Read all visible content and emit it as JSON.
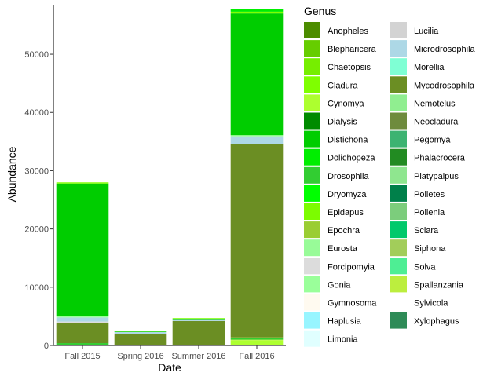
{
  "chart_data": {
    "type": "bar",
    "stacked": true,
    "xlabel": "Date",
    "ylabel": "Abundance",
    "categories": [
      "Fall 2015",
      "Spring 2016",
      "Summer 2016",
      "Fall 2016"
    ],
    "ylim": [
      0,
      58500
    ],
    "yticks": [
      0,
      10000,
      20000,
      30000,
      40000,
      50000
    ],
    "grid": false,
    "legend": {
      "title": "Genus",
      "placement": "right",
      "columns": 2,
      "entries": [
        {
          "name": "Anopheles",
          "color": "#4c8c00"
        },
        {
          "name": "Blepharicera",
          "color": "#66cd00"
        },
        {
          "name": "Chaetopsis",
          "color": "#76ee00"
        },
        {
          "name": "Cladura",
          "color": "#7fff00"
        },
        {
          "name": "Cynomya",
          "color": "#adff2f"
        },
        {
          "name": "Dialysis",
          "color": "#008b00"
        },
        {
          "name": "Distichona",
          "color": "#00cd00"
        },
        {
          "name": "Dolichopeza",
          "color": "#00ee00"
        },
        {
          "name": "Drosophila",
          "color": "#32cd32"
        },
        {
          "name": "Dryomyza",
          "color": "#00ff00"
        },
        {
          "name": "Epidapus",
          "color": "#7cfc00"
        },
        {
          "name": "Epochra",
          "color": "#9acd32"
        },
        {
          "name": "Eurosta",
          "color": "#98fb98"
        },
        {
          "name": "Forcipomyia",
          "color": "#dcdcdc"
        },
        {
          "name": "Gonia",
          "color": "#9aff9a"
        },
        {
          "name": "Gymnosoma",
          "color": "#fffaf0"
        },
        {
          "name": "Haplusia",
          "color": "#98f5ff"
        },
        {
          "name": "Limonia",
          "color": "#e0ffff"
        },
        {
          "name": "Lucilia",
          "color": "#d3d3d3"
        },
        {
          "name": "Microdrosophila",
          "color": "#add8e6"
        },
        {
          "name": "Morellia",
          "color": "#7fffd4"
        },
        {
          "name": "Mycodrosophila",
          "color": "#6b8e23"
        },
        {
          "name": "Nemotelus",
          "color": "#90ee90"
        },
        {
          "name": "Neocladura",
          "color": "#6e8b3d"
        },
        {
          "name": "Pegomya",
          "color": "#3cb371"
        },
        {
          "name": "Phalacrocera",
          "color": "#228b22"
        },
        {
          "name": "Platypalpus",
          "color": "#8fe68f"
        },
        {
          "name": "Polietes",
          "color": "#00804a"
        },
        {
          "name": "Pollenia",
          "color": "#7ccd7c"
        },
        {
          "name": "Sciara",
          "color": "#00c96b"
        },
        {
          "name": "Siphona",
          "color": "#a2cd5a"
        },
        {
          "name": "Solva",
          "color": "#4eee94"
        },
        {
          "name": "Spallanzania",
          "color": "#bcee3e"
        },
        {
          "name": "Sylvicola",
          "color": "#ffffff"
        },
        {
          "name": "Xylophagus",
          "color": "#2e8b57"
        }
      ]
    },
    "series": [
      {
        "name": "Cynomya",
        "values": [
          0,
          0,
          0,
          900
        ]
      },
      {
        "name": "Spallanzania",
        "values": [
          100,
          0,
          0,
          100
        ]
      },
      {
        "name": "Drosophila",
        "values": [
          300,
          0,
          0,
          300
        ]
      },
      {
        "name": "Epochra",
        "values": [
          0,
          0,
          0,
          100
        ]
      },
      {
        "name": "Pegomya",
        "values": [
          0,
          100,
          0,
          0
        ]
      },
      {
        "name": "Mycodrosophila",
        "values": [
          3500,
          1800,
          4200,
          33200
        ]
      },
      {
        "name": "Forcipomyia",
        "values": [
          200,
          100,
          0,
          0
        ]
      },
      {
        "name": "Microdrosophila",
        "values": [
          700,
          300,
          300,
          1300
        ]
      },
      {
        "name": "Gonia",
        "values": [
          200,
          0,
          0,
          200
        ]
      },
      {
        "name": "Distichona",
        "values": [
          22800,
          100,
          100,
          20900
        ]
      },
      {
        "name": "Cladura",
        "values": [
          200,
          100,
          100,
          300
        ]
      },
      {
        "name": "Dolichopeza",
        "values": [
          0,
          0,
          0,
          500
        ]
      }
    ]
  }
}
